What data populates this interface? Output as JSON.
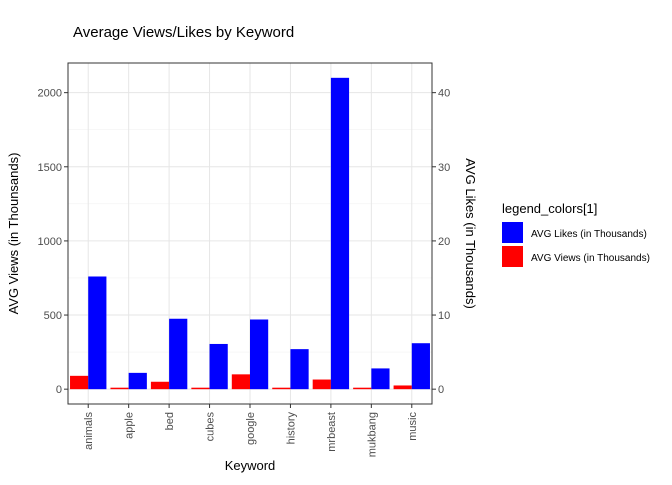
{
  "chart_data": {
    "type": "bar",
    "title": "Average Views/Likes by Keyword",
    "xlabel": "Keyword",
    "ylabel": "AVG Views (in Thounsands)",
    "y2label": "AVG Likes (in Thousands)",
    "categories": [
      "animals",
      "apple",
      "bed",
      "cubes",
      "google",
      "history",
      "mrbeast",
      "mukbang",
      "music"
    ],
    "ylim": [
      -100,
      2200
    ],
    "y_ticks": [
      0,
      500,
      1000,
      1500,
      2000
    ],
    "y2_ticks": [
      0,
      10,
      20,
      30,
      40
    ],
    "y2_scale_factor": 50,
    "grid": true,
    "legend_position": "right",
    "legend_title": "legend_colors[1]",
    "series": [
      {
        "name": "AVG Views (in Thousands)",
        "axis": "left",
        "color": "#FF0000",
        "values": [
          90,
          10,
          50,
          10,
          100,
          10,
          65,
          10,
          25
        ]
      },
      {
        "name": "AVG Likes (in Thousands)",
        "axis": "right",
        "color": "#0000FF",
        "values": [
          15.2,
          2.2,
          9.5,
          6.1,
          9.4,
          5.4,
          42.0,
          2.8,
          6.2
        ]
      }
    ],
    "legend_order": [
      "AVG Likes (in Thousands)",
      "AVG Views (in Thousands)"
    ]
  }
}
